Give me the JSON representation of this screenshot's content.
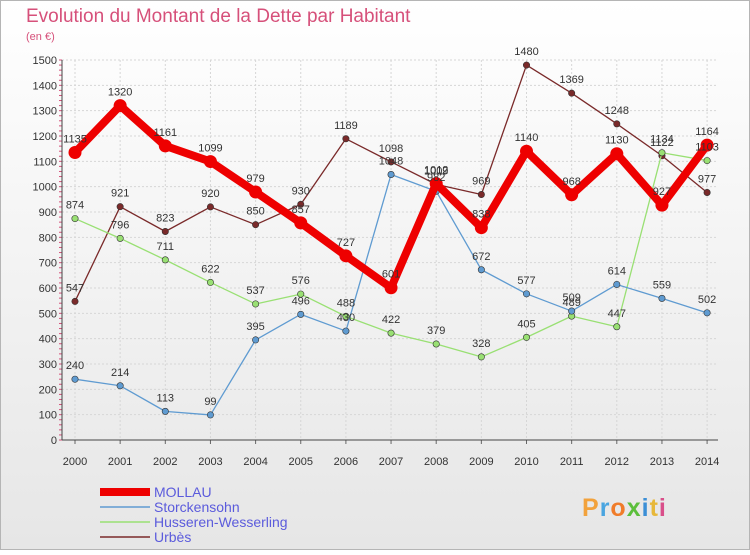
{
  "chart_data": {
    "type": "line",
    "title": "Evolution du Montant de la Dette par Habitant",
    "subtitle": "(en €)",
    "x": [
      "2000",
      "2001",
      "2002",
      "2003",
      "2004",
      "2005",
      "2006",
      "2007",
      "2008",
      "2009",
      "2010",
      "2011",
      "2012",
      "2013",
      "2014"
    ],
    "ylim": [
      0,
      1500
    ],
    "yticks": [
      0,
      100,
      200,
      300,
      400,
      500,
      600,
      700,
      800,
      900,
      1000,
      1100,
      1200,
      1300,
      1400,
      1500
    ],
    "grid": true,
    "legend_position": "bottom-left",
    "series": [
      {
        "name": "Urbès",
        "color": "#7a2a2a",
        "width": 1.3,
        "marker": 3.2,
        "values": [
          547,
          921,
          823,
          920,
          850,
          930,
          1189,
          1098,
          1009,
          969,
          1480,
          1369,
          1248,
          1122,
          977
        ]
      },
      {
        "name": "Husseren-Wesserling",
        "color": "#99e073",
        "width": 1.3,
        "marker": 3.2,
        "values": [
          874,
          796,
          711,
          622,
          537,
          576,
          488,
          422,
          379,
          328,
          405,
          489,
          447,
          1134,
          1103
        ]
      },
      {
        "name": "Storckensohn",
        "color": "#5f9bd1",
        "width": 1.3,
        "marker": 3.2,
        "values": [
          240,
          214,
          113,
          99,
          395,
          496,
          430,
          1048,
          982,
          672,
          577,
          509,
          614,
          559,
          502
        ]
      },
      {
        "name": "MOLLAU",
        "color": "#ee0000",
        "width": 8,
        "marker": 6.5,
        "values": [
          1135,
          1320,
          1161,
          1099,
          979,
          857,
          727,
          601,
          1012,
          838,
          1140,
          968,
          1130,
          927,
          1164
        ]
      }
    ],
    "legend": [
      {
        "name": "MOLLAU",
        "color": "#ee0000",
        "thick": true
      },
      {
        "name": "Storckensohn",
        "color": "#5f9bd1",
        "thick": false
      },
      {
        "name": "Husseren-Wesserling",
        "color": "#99e073",
        "thick": false
      },
      {
        "name": "Urbès",
        "color": "#7a2a2a",
        "thick": false
      }
    ],
    "brand": "Proxiti"
  }
}
